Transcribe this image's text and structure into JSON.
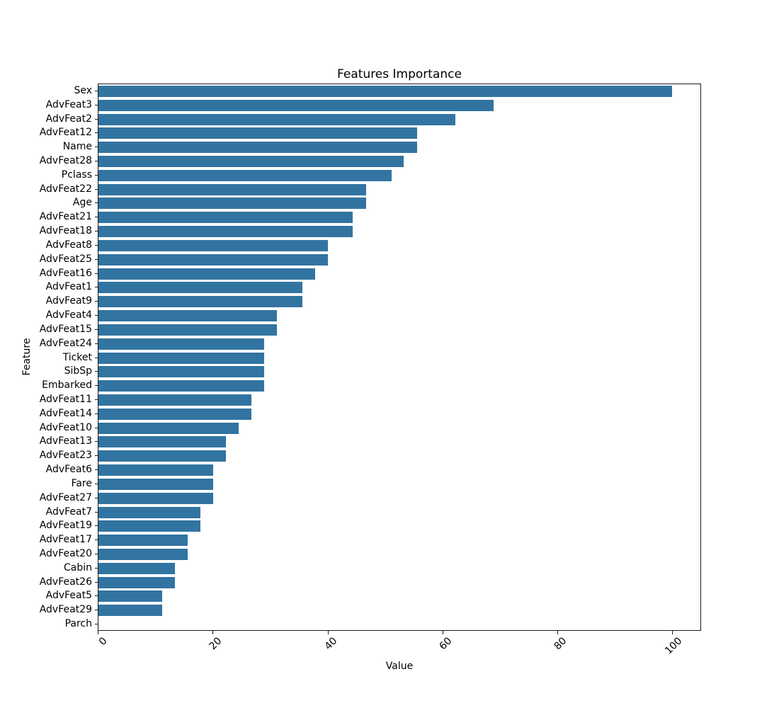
{
  "chart_data": {
    "type": "bar",
    "orientation": "horizontal",
    "title": "Features Importance",
    "xlabel": "Value",
    "ylabel": "Feature",
    "xlim": [
      0,
      105
    ],
    "x_ticks": [
      0,
      20,
      40,
      60,
      80,
      100
    ],
    "x_tick_rotation_deg": 45,
    "grid": false,
    "legend": "none",
    "bar_color": "#3274A1",
    "axis_color": "#1a1a1a",
    "background_color": "#ffffff",
    "categories": [
      "Sex",
      "AdvFeat3",
      "AdvFeat2",
      "AdvFeat12",
      "Name",
      "AdvFeat28",
      "Pclass",
      "AdvFeat22",
      "Age",
      "AdvFeat21",
      "AdvFeat18",
      "AdvFeat8",
      "AdvFeat25",
      "AdvFeat16",
      "AdvFeat1",
      "AdvFeat9",
      "AdvFeat4",
      "AdvFeat15",
      "AdvFeat24",
      "Ticket",
      "SibSp",
      "Embarked",
      "AdvFeat11",
      "AdvFeat14",
      "AdvFeat10",
      "AdvFeat13",
      "AdvFeat23",
      "AdvFeat6",
      "Fare",
      "AdvFeat27",
      "AdvFeat7",
      "AdvFeat19",
      "AdvFeat17",
      "AdvFeat20",
      "Cabin",
      "AdvFeat26",
      "AdvFeat5",
      "AdvFeat29",
      "Parch"
    ],
    "values": [
      100.0,
      68.9,
      62.2,
      55.6,
      55.6,
      53.3,
      51.1,
      46.7,
      46.7,
      44.4,
      44.4,
      40.0,
      40.0,
      37.8,
      35.6,
      35.6,
      31.1,
      31.1,
      28.9,
      28.9,
      28.9,
      28.9,
      26.7,
      26.7,
      24.4,
      22.2,
      22.2,
      20.0,
      20.0,
      20.0,
      17.8,
      17.8,
      15.6,
      15.6,
      13.3,
      13.3,
      11.1,
      11.1,
      0.0
    ]
  }
}
